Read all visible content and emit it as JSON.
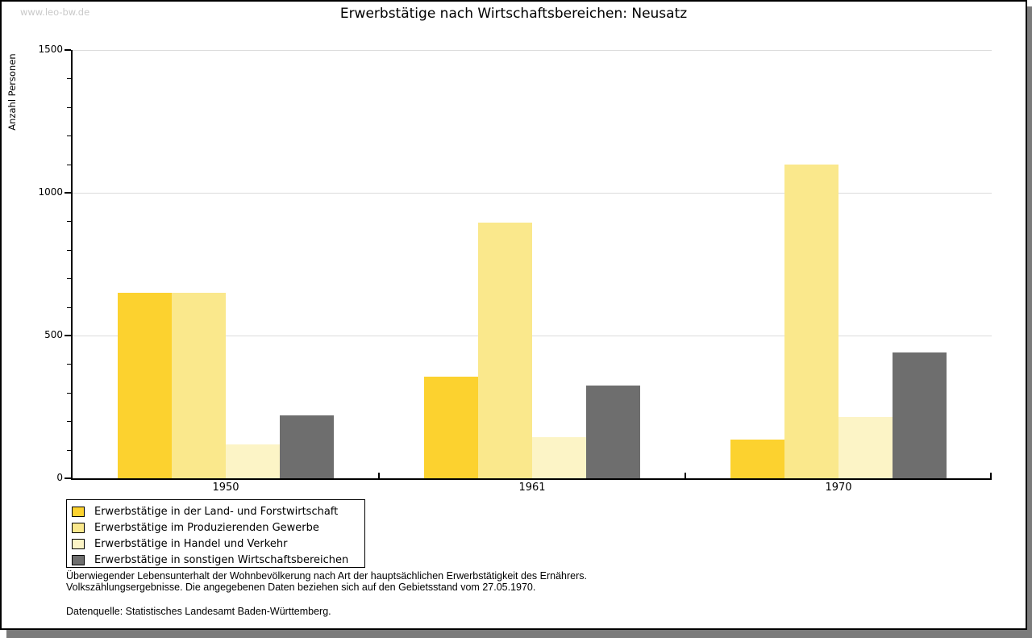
{
  "watermark": "www.leo-bw.de",
  "title": "Erwerbstätige nach Wirtschaftsbereichen: Neusatz",
  "footnotes": {
    "line1": "Überwiegender Lebensunterhalt der Wohnbevölkerung nach Art der hauptsächlichen Erwerbstätigkeit des Ernährers.",
    "line2": "Volkszählungsergebnisse. Die angegebenen Daten beziehen sich auf den Gebietsstand vom 27.05.1970.",
    "source": "Datenquelle: Statistisches Landesamt Baden-Württemberg."
  },
  "chart_data": {
    "type": "bar",
    "title": "Erwerbstätige nach Wirtschaftsbereichen: Neusatz",
    "xlabel": "",
    "ylabel": "Anzahl Personen",
    "ylim": [
      0,
      1500
    ],
    "ytick_major": [
      0,
      500,
      1000,
      1500
    ],
    "ytick_minor_step": 100,
    "gridlines_at": [
      500,
      1000,
      1500
    ],
    "grid": "horizontal",
    "legend_position": "bottom-left",
    "categories": [
      "1950",
      "1961",
      "1970"
    ],
    "series": [
      {
        "name": "Erwerbstätige in der Land- und Forstwirtschaft",
        "color": "#fcd22f",
        "values": [
          650,
          355,
          135
        ]
      },
      {
        "name": "Erwerbstätige im Produzierenden Gewerbe",
        "color": "#fae88c",
        "values": [
          650,
          895,
          1100
        ]
      },
      {
        "name": "Erwerbstätige in Handel und Verkehr",
        "color": "#fcf4c6",
        "values": [
          120,
          145,
          215
        ]
      },
      {
        "name": "Erwerbstätige in sonstigen Wirtschaftsbereichen",
        "color": "#6e6e6e",
        "values": [
          220,
          325,
          440
        ]
      }
    ]
  }
}
